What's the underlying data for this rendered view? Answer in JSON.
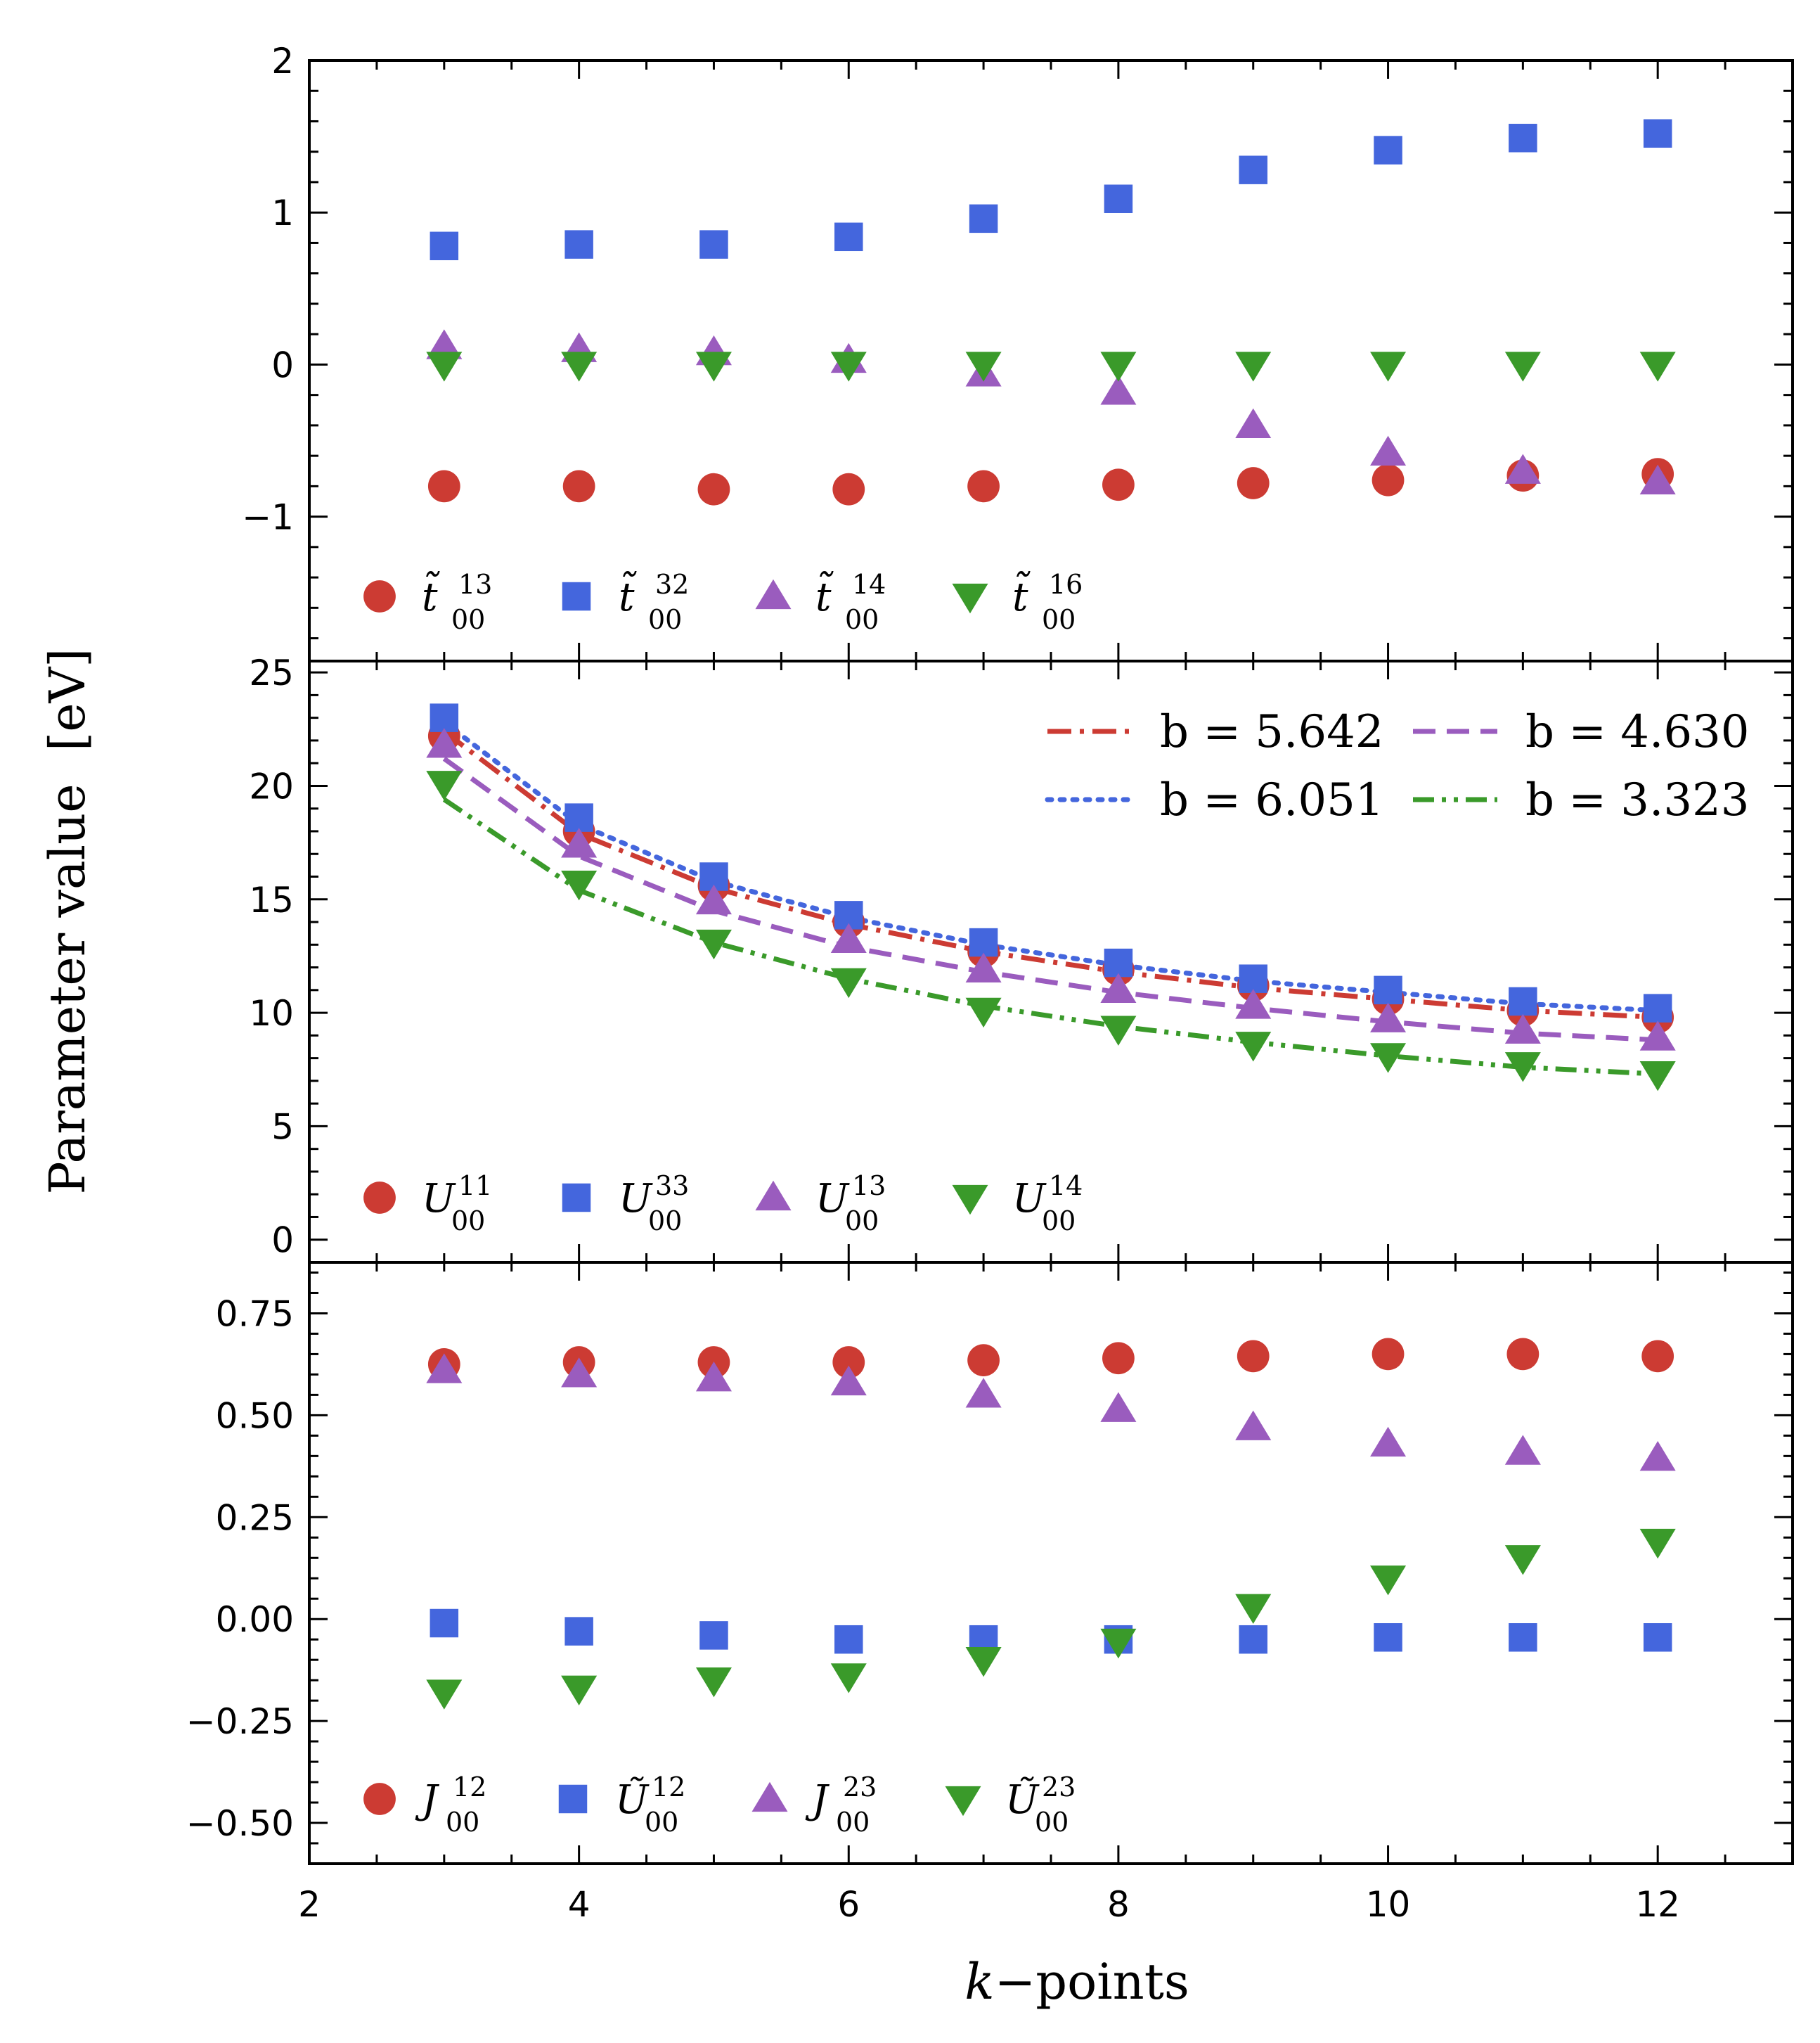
{
  "figure": {
    "ylabel": "Parameter value",
    "ylabel_unit": "[eV]",
    "xlabel_var": "k",
    "xlabel_rest": "−points"
  },
  "colors": {
    "red": "#cc3b33",
    "blue": "#4466dd",
    "purple": "#9a5cbe",
    "green": "#3a9a2a"
  },
  "chart_data": [
    {
      "type": "scatter",
      "panel": "top",
      "xlim": [
        2,
        13
      ],
      "ylim": [
        -1.95,
        2
      ],
      "yticks": [
        -1,
        0,
        1,
        2
      ],
      "ytick_labels": [
        "−1",
        "0",
        "1",
        "2"
      ],
      "x": [
        3,
        4,
        5,
        6,
        7,
        8,
        9,
        10,
        11,
        12
      ],
      "legend_position": "lower-left",
      "series": [
        {
          "name": "t~00 13",
          "base": "t̃",
          "sup": "13",
          "sub": "00",
          "marker": "circle",
          "color": "red",
          "values": [
            -0.8,
            -0.8,
            -0.82,
            -0.82,
            -0.8,
            -0.79,
            -0.78,
            -0.76,
            -0.73,
            -0.72
          ]
        },
        {
          "name": "t~00 32",
          "base": "t̃",
          "sup": "32",
          "sub": "00",
          "marker": "square",
          "color": "blue",
          "values": [
            0.78,
            0.79,
            0.79,
            0.84,
            0.96,
            1.09,
            1.28,
            1.41,
            1.49,
            1.52
          ]
        },
        {
          "name": "t~00 14",
          "base": "t̃",
          "sup": "14",
          "sub": "00",
          "marker": "triangle-up",
          "color": "purple",
          "values": [
            0.12,
            0.1,
            0.08,
            0.03,
            -0.06,
            -0.18,
            -0.4,
            -0.58,
            -0.7,
            -0.77
          ]
        },
        {
          "name": "t~00 16",
          "base": "t̃",
          "sup": "16",
          "sub": "00",
          "marker": "triangle-down",
          "color": "green",
          "values": [
            0.0,
            0.0,
            0.0,
            0.0,
            0.0,
            0.0,
            0.0,
            0.0,
            0.0,
            0.0
          ]
        }
      ]
    },
    {
      "type": "scatter",
      "panel": "middle",
      "xlim": [
        2,
        13
      ],
      "ylim": [
        -1,
        25.5
      ],
      "yticks": [
        0,
        5,
        10,
        15,
        20,
        25
      ],
      "ytick_labels": [
        "0",
        "5",
        "10",
        "15",
        "20",
        "25"
      ],
      "x": [
        3,
        4,
        5,
        6,
        7,
        8,
        9,
        10,
        11,
        12
      ],
      "legend_position": "lower-left",
      "series": [
        {
          "name": "U00 11",
          "base": "U",
          "sup": "11",
          "sub": "00",
          "marker": "circle",
          "color": "red",
          "values": [
            22.2,
            18.0,
            15.6,
            14.0,
            12.7,
            11.9,
            11.2,
            10.6,
            10.1,
            9.8
          ]
        },
        {
          "name": "U00 33",
          "base": "U",
          "sup": "33",
          "sub": "00",
          "marker": "square",
          "color": "blue",
          "values": [
            23.0,
            18.6,
            16.0,
            14.3,
            13.1,
            12.2,
            11.5,
            11.0,
            10.5,
            10.2
          ]
        },
        {
          "name": "U00 13",
          "base": "U",
          "sup": "13",
          "sub": "00",
          "marker": "triangle-up",
          "color": "purple",
          "values": [
            21.8,
            17.4,
            14.9,
            13.2,
            11.9,
            11.0,
            10.3,
            9.7,
            9.2,
            8.9
          ]
        },
        {
          "name": "U00 14",
          "base": "U",
          "sup": "14",
          "sub": "00",
          "marker": "triangle-down",
          "color": "green",
          "values": [
            20.1,
            15.7,
            13.1,
            11.4,
            10.1,
            9.3,
            8.6,
            8.1,
            7.7,
            7.3
          ]
        }
      ],
      "fits": [
        {
          "label": "b = 5.642",
          "b": 5.642,
          "color": "red",
          "dash": "dashdot",
          "legend_row": 0,
          "legend_col": 0,
          "x": [
            3,
            4,
            5,
            6,
            7,
            8,
            9,
            10,
            11,
            12
          ],
          "y": [
            22.4,
            17.9,
            15.5,
            13.9,
            12.7,
            11.8,
            11.1,
            10.6,
            10.1,
            9.8
          ]
        },
        {
          "label": "b = 4.630",
          "b": 4.63,
          "color": "purple",
          "dash": "dashed",
          "legend_row": 0,
          "legend_col": 1,
          "x": [
            3,
            4,
            5,
            6,
            7,
            8,
            9,
            10,
            11,
            12
          ],
          "y": [
            21.2,
            16.9,
            14.5,
            12.9,
            11.8,
            10.9,
            10.2,
            9.6,
            9.1,
            8.8
          ]
        },
        {
          "label": "b = 6.051",
          "b": 6.051,
          "color": "blue",
          "dash": "dotted",
          "legend_row": 1,
          "legend_col": 0,
          "x": [
            3,
            4,
            5,
            6,
            7,
            8,
            9,
            10,
            11,
            12
          ],
          "y": [
            22.8,
            18.3,
            15.8,
            14.2,
            13.0,
            12.1,
            11.4,
            10.9,
            10.4,
            10.1
          ]
        },
        {
          "label": "b = 3.323",
          "b": 3.323,
          "color": "green",
          "dash": "dashdotdot",
          "legend_row": 1,
          "legend_col": 1,
          "x": [
            3,
            4,
            5,
            6,
            7,
            8,
            9,
            10,
            11,
            12
          ],
          "y": [
            19.4,
            15.4,
            13.1,
            11.5,
            10.3,
            9.4,
            8.7,
            8.1,
            7.6,
            7.3
          ]
        }
      ]
    },
    {
      "type": "scatter",
      "panel": "bottom",
      "xlim": [
        2,
        13
      ],
      "ylim": [
        -0.6,
        0.875
      ],
      "yticks": [
        -0.5,
        -0.25,
        0,
        0.25,
        0.5,
        0.75
      ],
      "ytick_labels": [
        "−0.50",
        "−0.25",
        "0.00",
        "0.25",
        "0.50",
        "0.75"
      ],
      "xticks": [
        2,
        4,
        6,
        8,
        10,
        12
      ],
      "xtick_labels": [
        "2",
        "4",
        "6",
        "8",
        "10",
        "12"
      ],
      "x": [
        3,
        4,
        5,
        6,
        7,
        8,
        9,
        10,
        11,
        12
      ],
      "legend_position": "lower-left",
      "series": [
        {
          "name": "J00 12",
          "base": "J",
          "sup": "12",
          "sub": "00",
          "marker": "circle",
          "color": "red",
          "values": [
            0.625,
            0.63,
            0.63,
            0.63,
            0.635,
            0.64,
            0.645,
            0.65,
            0.65,
            0.645
          ]
        },
        {
          "name": "U~00 12",
          "base": "Ũ",
          "sup": "12",
          "sub": "00",
          "marker": "square",
          "color": "blue",
          "values": [
            -0.01,
            -0.03,
            -0.04,
            -0.05,
            -0.05,
            -0.05,
            -0.05,
            -0.045,
            -0.045,
            -0.045
          ]
        },
        {
          "name": "J00 23",
          "base": "J",
          "sup": "23",
          "sub": "00",
          "marker": "triangle-up",
          "color": "purple",
          "values": [
            0.61,
            0.6,
            0.59,
            0.58,
            0.55,
            0.515,
            0.47,
            0.43,
            0.41,
            0.395
          ]
        },
        {
          "name": "U~00 23",
          "base": "Ũ",
          "sup": "23",
          "sub": "00",
          "marker": "triangle-down",
          "color": "green",
          "values": [
            -0.18,
            -0.17,
            -0.15,
            -0.14,
            -0.1,
            -0.055,
            0.03,
            0.1,
            0.15,
            0.19
          ]
        }
      ]
    }
  ]
}
